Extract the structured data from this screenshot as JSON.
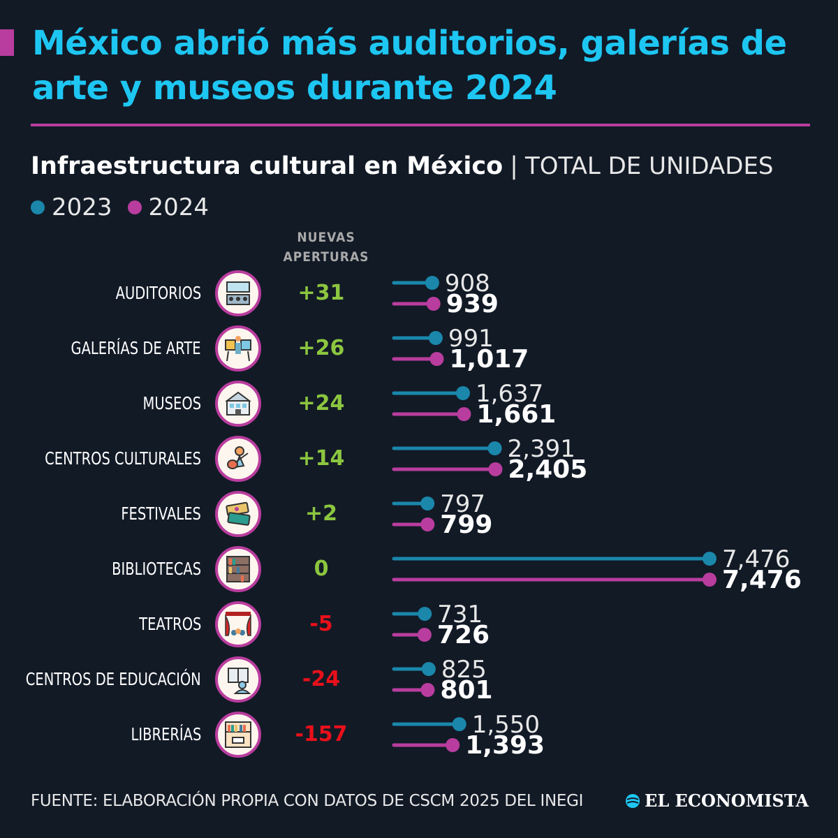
{
  "header": {
    "title": "México abrió más auditorios, galerías de arte y museos durante 2024",
    "subtitle": "Infraestructura cultural en México",
    "separator": "|",
    "unit": "TOTAL DE UNIDADES"
  },
  "legend": [
    {
      "label": "2023",
      "color": "#1a87ab"
    },
    {
      "label": "2024",
      "color": "#b93d9e"
    }
  ],
  "column_header": [
    "NUEVAS",
    "APERTURAS"
  ],
  "chart_data": {
    "type": "bar",
    "orientation": "horizontal",
    "style": "lollipop",
    "title": "Infraestructura cultural en México",
    "unit": "TOTAL DE UNIDADES",
    "categories": [
      "AUDITORIOS",
      "GALERÍAS DE ARTE",
      "MUSEOS",
      "CENTROS CULTURALES",
      "FESTIVALES",
      "BIBLIOTECAS",
      "TEATROS",
      "CENTROS DE EDUCACIÓN",
      "LIBRERÍAS"
    ],
    "series": [
      {
        "name": "2023",
        "color": "#1a87ab",
        "values": [
          908,
          991,
          1637,
          2391,
          797,
          7476,
          731,
          825,
          1550
        ],
        "labels": [
          "908",
          "991",
          "1,637",
          "2,391",
          "797",
          "7,476",
          "731",
          "825",
          "1,550"
        ]
      },
      {
        "name": "2024",
        "color": "#b93d9e",
        "values": [
          939,
          1017,
          1661,
          2405,
          799,
          7476,
          726,
          801,
          1393
        ],
        "labels": [
          "939",
          "1,017",
          "1,661",
          "2,405",
          "799",
          "7,476",
          "726",
          "801",
          "1,393"
        ]
      }
    ],
    "nuevas_aperturas": [
      "+31",
      "+26",
      "+24",
      "+14",
      "+2",
      "0",
      "-5",
      "-24",
      "-157"
    ],
    "delta_colors": {
      "positive": "#8cc63f",
      "negative": "#e8101a"
    },
    "icons": [
      "auditorium-icon",
      "art-gallery-icon",
      "museum-icon",
      "guitar-player-icon",
      "festival-tickets-icon",
      "bookshelf-icon",
      "theater-curtain-icon",
      "reading-icon",
      "bookstore-icon"
    ],
    "xlim": [
      0,
      7476
    ],
    "grid": false,
    "legend_position": "top-left"
  },
  "footer": {
    "source": "FUENTE: ELABORACIÓN PROPIA CON DATOS DE CSCM 2025 DEL INEGI",
    "brand": "EL ECONOMISTA"
  }
}
